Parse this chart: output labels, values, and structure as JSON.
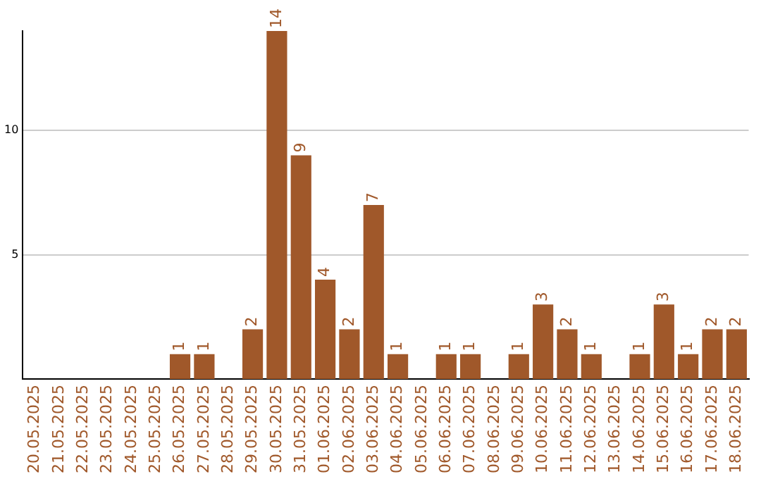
{
  "chart_data": {
    "type": "bar",
    "categories": [
      "20.05.2025",
      "21.05.2025",
      "22.05.2025",
      "23.05.2025",
      "24.05.2025",
      "25.05.2025",
      "26.05.2025",
      "27.05.2025",
      "28.05.2025",
      "29.05.2025",
      "30.05.2025",
      "31.05.2025",
      "01.06.2025",
      "02.06.2025",
      "03.06.2025",
      "04.06.2025",
      "05.06.2025",
      "06.06.2025",
      "07.06.2025",
      "08.06.2025",
      "09.06.2025",
      "10.06.2025",
      "11.06.2025",
      "12.06.2025",
      "13.06.2025",
      "14.06.2025",
      "15.06.2025",
      "16.06.2025",
      "17.06.2025",
      "18.06.2025"
    ],
    "values": [
      0,
      0,
      0,
      0,
      0,
      0,
      1,
      1,
      0,
      2,
      14,
      9,
      4,
      2,
      7,
      1,
      0,
      1,
      1,
      0,
      1,
      3,
      2,
      1,
      0,
      1,
      3,
      1,
      2,
      2
    ],
    "value_labels": [
      null,
      null,
      null,
      null,
      null,
      null,
      "1",
      "1",
      null,
      "2",
      "14",
      "9",
      "4",
      "2",
      "7",
      "1",
      null,
      "1",
      "1",
      null,
      "1",
      "3",
      "2",
      "1",
      null,
      "1",
      "3",
      "1",
      "2",
      "2"
    ],
    "color": "#a0582a",
    "ylim": [
      0,
      14
    ],
    "yticks": [
      5,
      10
    ],
    "grid": "y",
    "legend": false
  }
}
